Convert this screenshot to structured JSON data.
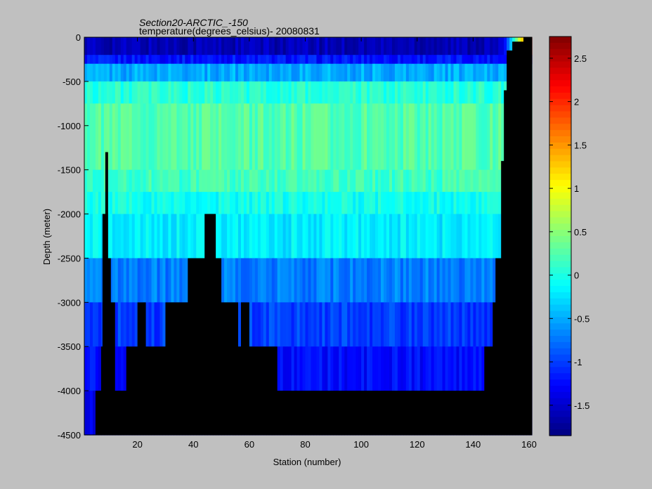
{
  "chart_data": {
    "type": "heatmap",
    "title": "Section20-ARCTIC_-150",
    "subtitle": "temperature(degrees_celsius)- 20080831",
    "xlabel": "Station (number)",
    "ylabel": "Depth (meter)",
    "xlim": [
      1,
      161
    ],
    "ylim": [
      -4500,
      0
    ],
    "x_ticks": [
      20,
      40,
      60,
      80,
      100,
      120,
      140,
      160
    ],
    "y_ticks": [
      0,
      -500,
      -1000,
      -1500,
      -2000,
      -2500,
      -3000,
      -3500,
      -4000,
      -4500
    ],
    "colorbar": {
      "range": [
        -1.85,
        2.75
      ],
      "ticks": [
        2.5,
        2,
        1.5,
        1,
        0.5,
        0,
        -0.5,
        -1,
        -1.5
      ],
      "colormap": "jet"
    },
    "depth_layers": [
      {
        "top": 0,
        "bottom": -200,
        "base_temp": -1.6
      },
      {
        "top": -200,
        "bottom": -300,
        "base_temp": -1.2
      },
      {
        "top": -300,
        "bottom": -500,
        "base_temp": -0.5
      },
      {
        "top": -500,
        "bottom": -750,
        "base_temp": 0.05
      },
      {
        "top": -750,
        "bottom": -1500,
        "base_temp": 0.25
      },
      {
        "top": -1500,
        "bottom": -1750,
        "base_temp": 0.15
      },
      {
        "top": -1750,
        "bottom": -2000,
        "base_temp": -0.05
      },
      {
        "top": -2000,
        "bottom": -2500,
        "base_temp": -0.2
      },
      {
        "top": -2500,
        "bottom": -3000,
        "base_temp": -0.7
      },
      {
        "top": -3000,
        "bottom": -3500,
        "base_temp": -1.0
      },
      {
        "top": -3500,
        "bottom": -4000,
        "base_temp": -1.25
      },
      {
        "top": -4000,
        "bottom": -4500,
        "base_temp": -1.4
      }
    ],
    "bottom_profile": [
      {
        "station": 1,
        "depth": -4500
      },
      {
        "station": 5,
        "depth": -4000
      },
      {
        "station": 7,
        "depth": -3500
      },
      {
        "station": 7.5,
        "depth": -2000
      },
      {
        "station": 8.5,
        "depth": -1300
      },
      {
        "station": 9.5,
        "depth": -2500
      },
      {
        "station": 10.5,
        "depth": -3000
      },
      {
        "station": 12,
        "depth": -4000
      },
      {
        "station": 16,
        "depth": -3500
      },
      {
        "station": 20,
        "depth": -3000
      },
      {
        "station": 23,
        "depth": -3500
      },
      {
        "station": 26,
        "depth": -3500
      },
      {
        "station": 30,
        "depth": -3000
      },
      {
        "station": 36,
        "depth": -3000
      },
      {
        "station": 38,
        "depth": -2500
      },
      {
        "station": 44,
        "depth": -2000
      },
      {
        "station": 48,
        "depth": -2500
      },
      {
        "station": 50,
        "depth": -3000
      },
      {
        "station": 56,
        "depth": -3500
      },
      {
        "station": 57,
        "depth": -3000
      },
      {
        "station": 60,
        "depth": -3500
      },
      {
        "station": 66,
        "depth": -3500
      },
      {
        "station": 70,
        "depth": -4000
      },
      {
        "station": 144,
        "depth": -3500
      },
      {
        "station": 147,
        "depth": -3000
      },
      {
        "station": 148,
        "depth": -2500
      },
      {
        "station": 150,
        "depth": -1400
      },
      {
        "station": 151,
        "depth": -600
      },
      {
        "station": 152,
        "depth": -150
      },
      {
        "station": 154,
        "depth": -50
      },
      {
        "station": 158,
        "depth": 0
      },
      {
        "station": 161,
        "depth": 0
      }
    ]
  }
}
